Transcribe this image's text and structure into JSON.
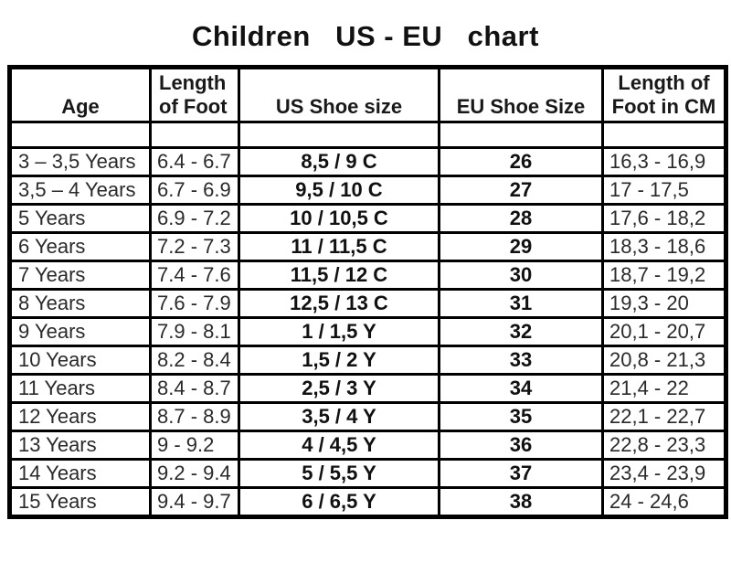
{
  "title": "Children   US - EU   chart",
  "chart_data": {
    "type": "table",
    "title": "Children   US - EU   chart",
    "columns": [
      "Age",
      "Length\nof Foot",
      "US Shoe size",
      "EU Shoe Size",
      "Length of\nFoot in CM"
    ],
    "column_keys": [
      "age",
      "foot_in",
      "us",
      "eu",
      "cm"
    ],
    "rows": [
      {
        "age": "3 – 3,5 Years",
        "foot_in": "6.4 - 6.7",
        "us": "8,5 / 9 C",
        "eu": "26",
        "cm": "16,3 - 16,9"
      },
      {
        "age": "3,5 – 4 Years",
        "foot_in": "6.7 - 6.9",
        "us": "9,5 / 10 C",
        "eu": "27",
        "cm": "17 - 17,5"
      },
      {
        "age": "5 Years",
        "foot_in": "6.9 - 7.2",
        "us": "10 / 10,5 C",
        "eu": "28",
        "cm": "17,6 - 18,2"
      },
      {
        "age": "6 Years",
        "foot_in": "7.2 - 7.3",
        "us": "11 / 11,5 C",
        "eu": "29",
        "cm": "18,3 - 18,6"
      },
      {
        "age": "7 Years",
        "foot_in": "7.4 - 7.6",
        "us": "11,5 / 12 C",
        "eu": "30",
        "cm": "18,7 - 19,2"
      },
      {
        "age": "8 Years",
        "foot_in": "7.6 - 7.9",
        "us": "12,5 / 13 C",
        "eu": "31",
        "cm": "19,3 - 20"
      },
      {
        "age": "9 Years",
        "foot_in": "7.9 - 8.1",
        "us": "1 / 1,5 Y",
        "eu": "32",
        "cm": "20,1 - 20,7"
      },
      {
        "age": "10 Years",
        "foot_in": "8.2 - 8.4",
        "us": "1,5 / 2 Y",
        "eu": "33",
        "cm": "20,8 - 21,3"
      },
      {
        "age": "11 Years",
        "foot_in": "8.4 - 8.7",
        "us": "2,5 / 3 Y",
        "eu": "34",
        "cm": "21,4 - 22"
      },
      {
        "age": "12 Years",
        "foot_in": "8.7 - 8.9",
        "us": "3,5 / 4 Y",
        "eu": "35",
        "cm": "22,1 - 22,7"
      },
      {
        "age": "13 Years",
        "foot_in": "9 - 9.2",
        "us": "4 / 4,5 Y",
        "eu": "36",
        "cm": "22,8 - 23,3"
      },
      {
        "age": "14 Years",
        "foot_in": "9.2 - 9.4",
        "us": "5 / 5,5 Y",
        "eu": "37",
        "cm": "23,4 - 23,9"
      },
      {
        "age": "15 Years",
        "foot_in": "9.4 - 9.7",
        "us": "6 / 6,5 Y",
        "eu": "38",
        "cm": "24 - 24,6"
      }
    ],
    "colors": {
      "border": "#000000",
      "text": "#2a2a2a",
      "bold_text": "#111111",
      "background": "#ffffff"
    }
  }
}
